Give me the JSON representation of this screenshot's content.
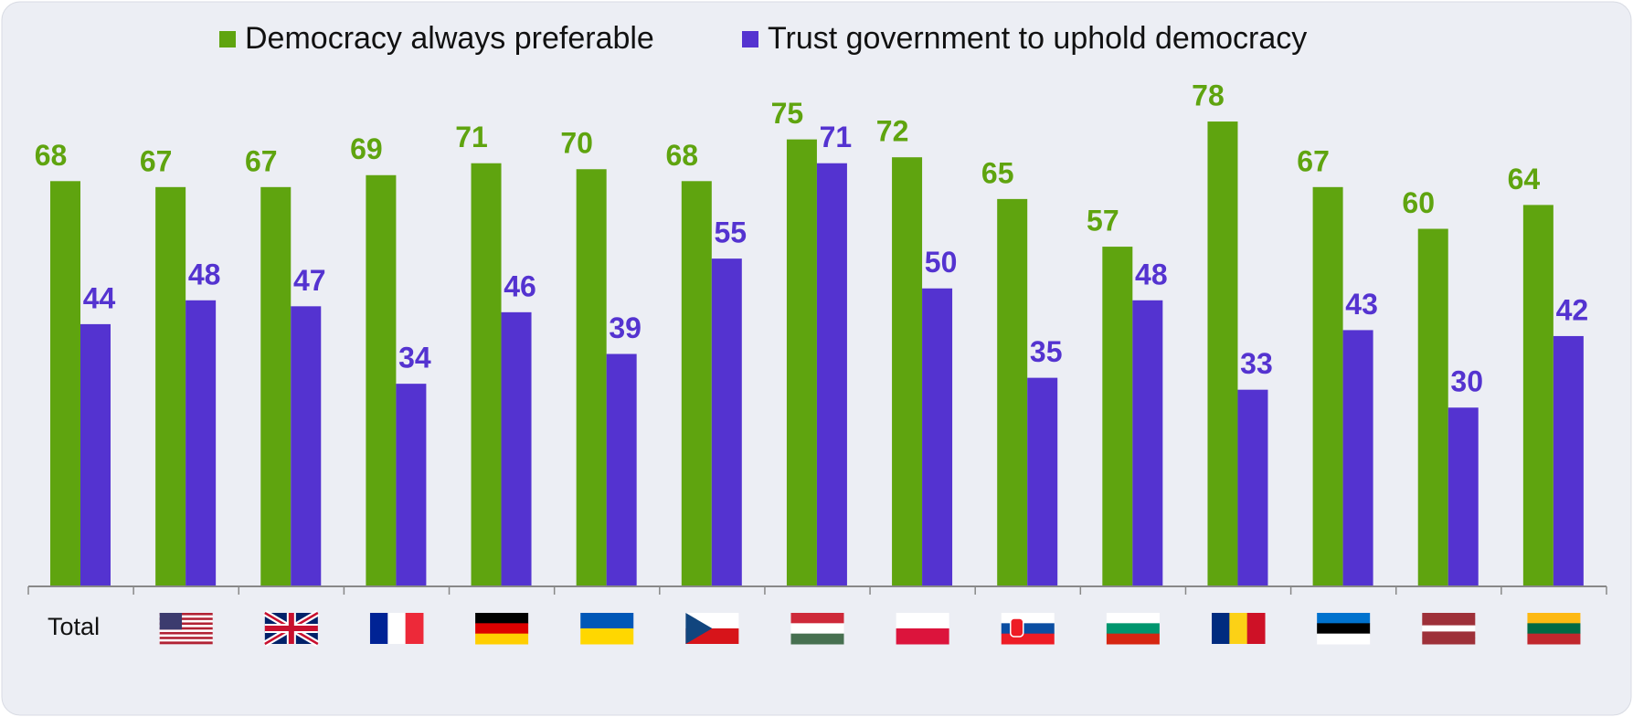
{
  "chart_data": {
    "type": "bar",
    "categories": [
      "Total",
      null,
      null,
      null,
      null,
      null,
      null,
      null,
      null,
      null,
      null,
      null,
      null,
      null,
      null
    ],
    "series": [
      {
        "name": "Democracy always preferable",
        "color": "#5fa40f",
        "values": [
          68,
          67,
          67,
          69,
          71,
          70,
          68,
          75,
          72,
          65,
          57,
          78,
          67,
          60,
          64
        ]
      },
      {
        "name": "Trust government to uphold democracy",
        "color": "#5433d0",
        "values": [
          44,
          48,
          47,
          34,
          46,
          39,
          55,
          71,
          50,
          35,
          48,
          33,
          43,
          30,
          42
        ]
      }
    ],
    "ylim": [
      0,
      80
    ],
    "grid": false,
    "legend": "top"
  }
}
